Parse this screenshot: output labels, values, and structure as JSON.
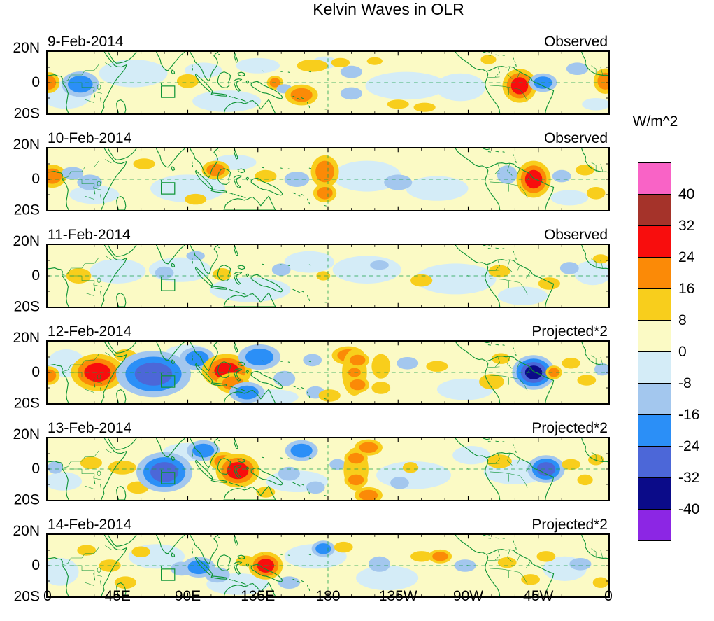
{
  "chart_data": {
    "type": "heatmap",
    "title": "Kelvin Waves in OLR",
    "units_label": "W/m^2",
    "x_tick_labels": [
      "0",
      "45E",
      "90E",
      "135E",
      "180",
      "135W",
      "90W",
      "45W",
      "0"
    ],
    "y_tick_labels": [
      "20N",
      "0",
      "20S"
    ],
    "x_range_deg_east": [
      0,
      360
    ],
    "y_range_deg_north": [
      -20,
      20
    ],
    "grid": "dashed equator line and dashed date line at 180",
    "map_colors": {
      "coastline_green": "#0C9434",
      "equator_dash_green": "#18A04C",
      "background_pale_yellow": "#FBFAC5"
    },
    "colorbar": {
      "tick_labels": [
        "40",
        "32",
        "24",
        "16",
        "8",
        "0",
        "-8",
        "-16",
        "-24",
        "-32",
        "-40"
      ],
      "segment_colors_top_to_bottom": [
        "#F963C6",
        "#A5332A",
        "#F80D0D",
        "#FB8A07",
        "#F8CE1C",
        "#FBFAC5",
        "#D4ECF7",
        "#A3C7EE",
        "#2B8FF7",
        "#4C67D8",
        "#0B0B89",
        "#8C26E4"
      ],
      "segment_value_ranges_top_to_bottom": [
        ">40",
        "32..40",
        "24..32",
        "16..24",
        "8..16",
        "0..8",
        "-8..0",
        "-16..-8",
        "-24..-16",
        "-32..-24",
        "-40..-32",
        "<-40"
      ]
    },
    "anomaly_format": "[lon_deg_east, lat_deg_north, rx_deg, ry_deg, peak_value_wm2]",
    "panels": [
      {
        "date": "9-Feb-2014",
        "run_label": "Observed",
        "anomalies": [
          [
            1,
            0,
            4.5,
            4.5,
            16
          ],
          [
            12,
            -8,
            16,
            9,
            -4
          ],
          [
            55,
            6,
            22,
            9,
            -4
          ],
          [
            21,
            -1,
            8,
            5.5,
            -16
          ],
          [
            90,
            1,
            7,
            4.5,
            8
          ],
          [
            100,
            8,
            12,
            5,
            -4
          ],
          [
            115,
            -12,
            22,
            7,
            -4
          ],
          [
            135,
            11,
            14,
            5,
            -4
          ],
          [
            146,
            0,
            3.5,
            3,
            16
          ],
          [
            152,
            -4,
            5,
            3,
            -8
          ],
          [
            163,
            -8,
            7,
            4.5,
            16
          ],
          [
            170,
            11,
            10,
            4,
            8
          ],
          [
            178,
            13,
            8,
            4,
            -4
          ],
          [
            188,
            13,
            6,
            3,
            8
          ],
          [
            195,
            7,
            7,
            4,
            -8
          ],
          [
            195,
            -7,
            7,
            4,
            -8
          ],
          [
            210,
            14,
            5,
            2.5,
            8
          ],
          [
            225,
            -14,
            7,
            3,
            8
          ],
          [
            230,
            -2,
            26,
            9,
            -4
          ],
          [
            242,
            -16,
            7,
            3,
            8
          ],
          [
            265,
            -3,
            16,
            9,
            -4
          ],
          [
            283,
            15,
            5,
            3,
            8
          ],
          [
            303,
            -2,
            5.5,
            5.5,
            24
          ],
          [
            318,
            0,
            6,
            4,
            -16
          ],
          [
            340,
            9,
            7,
            4,
            -8
          ],
          [
            352,
            -14,
            9,
            4,
            -4
          ],
          [
            358,
            1,
            5,
            5.5,
            16
          ]
        ]
      },
      {
        "date": "10-Feb-2014",
        "run_label": "Observed",
        "anomalies": [
          [
            3,
            2,
            6,
            5,
            16
          ],
          [
            16,
            4,
            7,
            4,
            -8
          ],
          [
            27,
            -2,
            8,
            5,
            -8
          ],
          [
            30,
            -10,
            16,
            6,
            -4
          ],
          [
            62,
            10,
            7,
            3.5,
            8
          ],
          [
            90,
            -6,
            24,
            9,
            -4
          ],
          [
            95,
            -13,
            7,
            3.5,
            8
          ],
          [
            108,
            6,
            6,
            4,
            16
          ],
          [
            120,
            11,
            14,
            5,
            -4
          ],
          [
            140,
            2,
            7,
            4,
            8
          ],
          [
            160,
            0,
            8,
            5,
            -8
          ],
          [
            178,
            5,
            6,
            7,
            16
          ],
          [
            178,
            -9,
            5,
            4,
            16
          ],
          [
            205,
            2,
            22,
            10,
            -4
          ],
          [
            225,
            -2,
            9,
            5,
            -8
          ],
          [
            250,
            -6,
            20,
            8,
            -4
          ],
          [
            295,
            3,
            6.5,
            6,
            -8
          ],
          [
            312,
            0,
            5.5,
            6,
            24
          ],
          [
            330,
            2,
            6,
            4,
            -8
          ],
          [
            335,
            -12,
            12,
            5,
            -4
          ],
          [
            345,
            6,
            6,
            3.5,
            8
          ],
          [
            352,
            -9,
            6,
            4,
            8
          ]
        ]
      },
      {
        "date": "11-Feb-2014",
        "run_label": "Observed",
        "anomalies": [
          [
            20,
            0,
            8,
            5,
            8
          ],
          [
            45,
            3,
            18,
            8,
            -4
          ],
          [
            75,
            2,
            6,
            4,
            -8
          ],
          [
            85,
            4,
            20,
            8,
            -4
          ],
          [
            95,
            13,
            6,
            3,
            -8
          ],
          [
            112,
            1,
            6,
            4,
            8
          ],
          [
            130,
            -9,
            26,
            8,
            -4
          ],
          [
            150,
            4,
            6,
            4,
            -8
          ],
          [
            168,
            9,
            16,
            7,
            -4
          ],
          [
            177,
            0,
            4.5,
            3,
            8
          ],
          [
            205,
            4,
            22,
            9,
            -4
          ],
          [
            213,
            7,
            6,
            3,
            -8
          ],
          [
            240,
            -3,
            7,
            4,
            8
          ],
          [
            262,
            -2,
            26,
            10,
            -4
          ],
          [
            290,
            3,
            7,
            4,
            8
          ],
          [
            305,
            -13,
            16,
            6,
            -4
          ],
          [
            322,
            -5,
            7,
            4,
            8
          ],
          [
            335,
            5,
            6,
            4,
            -8
          ],
          [
            350,
            2,
            12,
            8,
            -4
          ],
          [
            355,
            11,
            5,
            3,
            8
          ]
        ]
      },
      {
        "date": "12-Feb-2014",
        "run_label": "Projected*2",
        "anomalies": [
          [
            1,
            -2,
            4.5,
            4,
            16
          ],
          [
            12,
            6,
            12,
            9,
            -4
          ],
          [
            32,
            0,
            8.5,
            6,
            24
          ],
          [
            50,
            11,
            7,
            4,
            8
          ],
          [
            68,
            -1,
            12,
            7.5,
            -24
          ],
          [
            90,
            13,
            14,
            5,
            -4
          ],
          [
            96,
            9,
            7.5,
            5,
            -16
          ],
          [
            115,
            1,
            8,
            5.5,
            24
          ],
          [
            119,
            -7,
            7,
            4.5,
            16
          ],
          [
            128,
            -13,
            7.5,
            4.5,
            -16
          ],
          [
            136,
            10,
            9,
            5.5,
            -16
          ],
          [
            145,
            -16,
            16,
            5,
            -4
          ],
          [
            152,
            -4,
            7,
            5,
            -8
          ],
          [
            170,
            8,
            6,
            4,
            -8
          ],
          [
            172,
            -13,
            6,
            4,
            -8
          ],
          [
            181,
            -15,
            7,
            4,
            8
          ],
          [
            193,
            11,
            7,
            4,
            16
          ],
          [
            197,
            0,
            8,
            15,
            8
          ],
          [
            199,
            8,
            5,
            3.5,
            16
          ],
          [
            199,
            -8,
            5,
            3.5,
            16
          ],
          [
            197,
            0,
            4,
            3,
            16
          ],
          [
            214,
            4,
            6,
            8,
            8
          ],
          [
            214,
            -10,
            6,
            4,
            8
          ],
          [
            231,
            6,
            7,
            4,
            -8
          ],
          [
            250,
            4,
            7,
            3.5,
            8
          ],
          [
            268,
            -11,
            18,
            7,
            -4
          ],
          [
            285,
            -6,
            8,
            5,
            8
          ],
          [
            291,
            9,
            6,
            3.5,
            8
          ],
          [
            312,
            0,
            5.5,
            4.5,
            -32
          ],
          [
            325,
            0,
            3.5,
            3,
            16
          ],
          [
            336,
            6,
            6,
            3.5,
            8
          ],
          [
            346,
            -5,
            6,
            3.5,
            8
          ],
          [
            356,
            2,
            5,
            4,
            -8
          ]
        ]
      },
      {
        "date": "13-Feb-2014",
        "run_label": "Projected*2",
        "anomalies": [
          [
            5,
            1,
            5,
            4,
            -8
          ],
          [
            10,
            -8,
            12,
            6,
            -4
          ],
          [
            28,
            4,
            7,
            4,
            8
          ],
          [
            48,
            1,
            9,
            4.5,
            8
          ],
          [
            58,
            -12,
            7,
            4,
            8
          ],
          [
            75,
            -2,
            9,
            6.5,
            -24
          ],
          [
            90,
            11,
            16,
            6,
            -4
          ],
          [
            100,
            12,
            7,
            4.5,
            -16
          ],
          [
            113,
            5,
            6,
            4,
            16
          ],
          [
            122,
            -1,
            7,
            5.5,
            24
          ],
          [
            140,
            -15,
            6,
            3.5,
            8
          ],
          [
            155,
            -3,
            7,
            4.5,
            -8
          ],
          [
            160,
            -8,
            20,
            7,
            -4
          ],
          [
            163,
            12,
            7,
            4.5,
            -16
          ],
          [
            172,
            -12,
            6,
            4,
            -8
          ],
          [
            186,
            3,
            5,
            3.5,
            -8
          ],
          [
            198,
            0,
            8,
            14,
            8
          ],
          [
            198,
            7,
            5,
            3.5,
            16
          ],
          [
            198,
            -7,
            5,
            3.5,
            16
          ],
          [
            206,
            14,
            6,
            3.5,
            16
          ],
          [
            206,
            -17,
            6,
            3.5,
            16
          ],
          [
            226,
            -9,
            6,
            4,
            -8
          ],
          [
            233,
            1,
            5,
            3.5,
            8
          ],
          [
            235,
            -4,
            24,
            9,
            -4
          ],
          [
            272,
            9,
            12,
            6,
            -4
          ],
          [
            290,
            5,
            8,
            4.5,
            8
          ],
          [
            300,
            -2,
            20,
            8,
            -4
          ],
          [
            320,
            0,
            6,
            4.5,
            -24
          ],
          [
            336,
            3,
            6,
            3.5,
            8
          ],
          [
            345,
            -7,
            5,
            3.5,
            8
          ],
          [
            352,
            6,
            5,
            3.5,
            8
          ]
        ]
      },
      {
        "date": "14-Feb-2014",
        "run_label": "Projected*2",
        "anomalies": [
          [
            8,
            -4,
            12,
            9,
            -4
          ],
          [
            25,
            10,
            6,
            3.5,
            8
          ],
          [
            40,
            0,
            7,
            4,
            8
          ],
          [
            50,
            -11,
            7,
            4,
            8
          ],
          [
            60,
            9,
            6,
            3.5,
            8
          ],
          [
            70,
            6,
            18,
            8,
            -4
          ],
          [
            86,
            -2,
            7,
            4.5,
            -8
          ],
          [
            97,
            -1,
            7,
            4.5,
            -16
          ],
          [
            109,
            -6,
            8,
            5,
            -8
          ],
          [
            122,
            -12,
            20,
            7,
            -4
          ],
          [
            127,
            3,
            6,
            3.5,
            8
          ],
          [
            140,
            0,
            5.5,
            4.5,
            24
          ],
          [
            155,
            -11,
            7,
            4,
            -8
          ],
          [
            172,
            6,
            20,
            8,
            -4
          ],
          [
            177,
            11,
            5,
            3.5,
            -16
          ],
          [
            190,
            12,
            6,
            3.5,
            8
          ],
          [
            213,
            1,
            7,
            5,
            -8
          ],
          [
            218,
            -8,
            20,
            8,
            -4
          ],
          [
            240,
            6,
            7,
            3.5,
            8
          ],
          [
            252,
            6,
            5,
            3,
            16
          ],
          [
            268,
            0,
            7,
            4,
            -8
          ],
          [
            295,
            2,
            6,
            3.5,
            8
          ],
          [
            310,
            -9,
            6,
            3.5,
            8
          ],
          [
            320,
            6,
            6,
            3.5,
            8
          ],
          [
            332,
            -2,
            14,
            8,
            -4
          ],
          [
            342,
            1,
            7,
            4,
            -8
          ],
          [
            355,
            -11,
            5,
            3.5,
            8
          ]
        ]
      }
    ]
  }
}
